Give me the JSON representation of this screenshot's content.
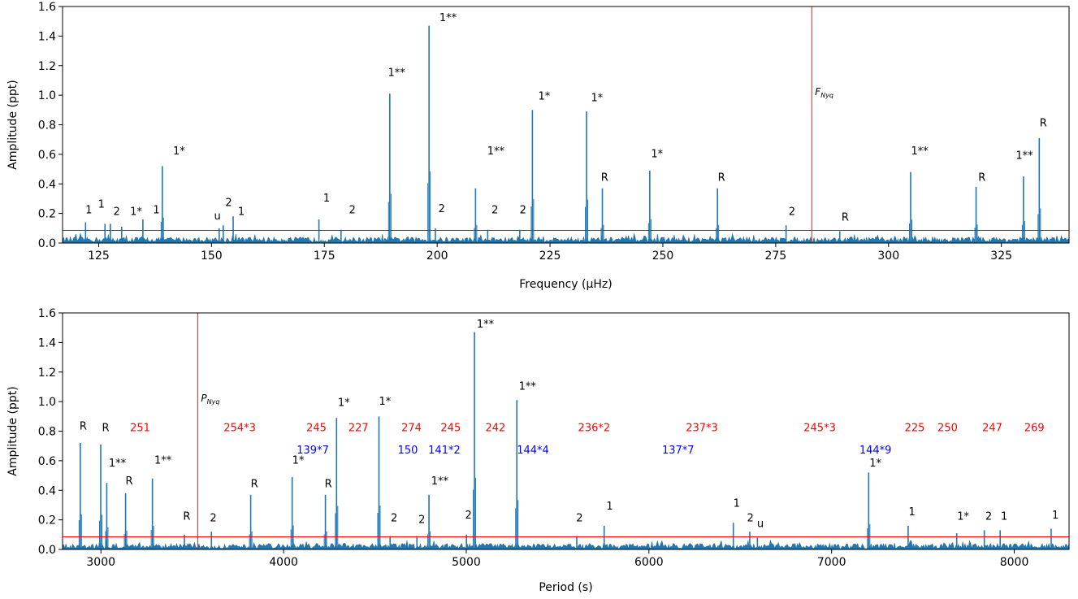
{
  "colors": {
    "signal": "#1f77b4",
    "threshold": "#ff0000",
    "black_label": "#000000",
    "red_label": "#ff0000",
    "blue_label": "#0000ff"
  },
  "chart_data": [
    {
      "type": "line",
      "xlabel": "Frequency (μHz)",
      "ylabel": "Amplitude (ppt)",
      "xlim": [
        117,
        340
      ],
      "ylim": [
        0,
        1.6
      ],
      "xticks": [
        125,
        150,
        175,
        200,
        225,
        250,
        275,
        300,
        325
      ],
      "yticks": [
        0.0,
        0.2,
        0.4,
        0.6,
        0.8,
        1.0,
        1.2,
        1.4,
        1.6
      ],
      "grid": false,
      "threshold": 0.085,
      "noise_level": 0.03,
      "nyquist": {
        "x": 283,
        "label_main": "F",
        "label_sub": "Nyq"
      },
      "peaks": [
        {
          "x": 122.1,
          "y": 0.14
        },
        {
          "x": 126.4,
          "y": 0.13
        },
        {
          "x": 127.6,
          "y": 0.13
        },
        {
          "x": 130.1,
          "y": 0.11
        },
        {
          "x": 134.8,
          "y": 0.16
        },
        {
          "x": 139.1,
          "y": 0.52
        },
        {
          "x": 151.7,
          "y": 0.1
        },
        {
          "x": 152.6,
          "y": 0.12
        },
        {
          "x": 154.8,
          "y": 0.18
        },
        {
          "x": 173.8,
          "y": 0.16
        },
        {
          "x": 178.7,
          "y": 0.09
        },
        {
          "x": 189.5,
          "y": 1.01
        },
        {
          "x": 198.2,
          "y": 1.47
        },
        {
          "x": 199.6,
          "y": 0.1
        },
        {
          "x": 208.5,
          "y": 0.37
        },
        {
          "x": 211.2,
          "y": 0.09
        },
        {
          "x": 218.3,
          "y": 0.09
        },
        {
          "x": 221.1,
          "y": 0.9
        },
        {
          "x": 233.1,
          "y": 0.89
        },
        {
          "x": 236.6,
          "y": 0.37
        },
        {
          "x": 247.1,
          "y": 0.49
        },
        {
          "x": 262.1,
          "y": 0.37
        },
        {
          "x": 277.3,
          "y": 0.12
        },
        {
          "x": 289.2,
          "y": 0.08
        },
        {
          "x": 304.9,
          "y": 0.48
        },
        {
          "x": 319.4,
          "y": 0.38
        },
        {
          "x": 329.9,
          "y": 0.45
        },
        {
          "x": 333.4,
          "y": 0.71
        }
      ],
      "annotations": [
        {
          "text": "1",
          "x": 122.8,
          "y": 0.2
        },
        {
          "x": 125.6,
          "y": 0.24,
          "text": "1"
        },
        {
          "text": "2",
          "x": 129.0,
          "y": 0.19
        },
        {
          "text": "1*",
          "x": 133.3,
          "y": 0.19
        },
        {
          "text": "1",
          "x": 137.8,
          "y": 0.2
        },
        {
          "text": "1*",
          "x": 142.8,
          "y": 0.6
        },
        {
          "text": "u",
          "x": 151.3,
          "y": 0.16
        },
        {
          "text": "2",
          "x": 153.8,
          "y": 0.25
        },
        {
          "text": "1",
          "x": 156.6,
          "y": 0.19
        },
        {
          "text": "1",
          "x": 175.5,
          "y": 0.28
        },
        {
          "text": "2",
          "x": 181.2,
          "y": 0.2
        },
        {
          "text": "1**",
          "x": 191.0,
          "y": 1.13
        },
        {
          "text": "1**",
          "x": 202.4,
          "y": 1.5
        },
        {
          "text": "2",
          "x": 201.0,
          "y": 0.21
        },
        {
          "text": "1**",
          "x": 213.0,
          "y": 0.6
        },
        {
          "text": "2",
          "x": 212.8,
          "y": 0.2
        },
        {
          "text": "2",
          "x": 219.0,
          "y": 0.2
        },
        {
          "text": "1*",
          "x": 223.7,
          "y": 0.97
        },
        {
          "text": "1*",
          "x": 235.4,
          "y": 0.96
        },
        {
          "text": "R",
          "x": 237.1,
          "y": 0.42
        },
        {
          "text": "1*",
          "x": 248.7,
          "y": 0.58
        },
        {
          "text": "R",
          "x": 263.0,
          "y": 0.42
        },
        {
          "text": "2",
          "x": 278.6,
          "y": 0.19
        },
        {
          "text": "R",
          "x": 290.4,
          "y": 0.15
        },
        {
          "text": "1**",
          "x": 306.9,
          "y": 0.6
        },
        {
          "text": "R",
          "x": 320.7,
          "y": 0.42
        },
        {
          "text": "1**",
          "x": 330.1,
          "y": 0.57
        },
        {
          "text": "R",
          "x": 334.3,
          "y": 0.79
        }
      ]
    },
    {
      "type": "line",
      "xlabel": "Period (s)",
      "ylabel": "Amplitude (ppt)",
      "xlim": [
        2790,
        8300
      ],
      "ylim": [
        0,
        1.6
      ],
      "xticks": [
        3000,
        4000,
        5000,
        6000,
        7000,
        8000
      ],
      "yticks": [
        0.0,
        0.2,
        0.4,
        0.6,
        0.8,
        1.0,
        1.2,
        1.4,
        1.6
      ],
      "grid": false,
      "threshold": 0.085,
      "noise_level": 0.03,
      "nyquist": {
        "x": 3530,
        "label_main": "P",
        "label_sub": "Nyq"
      },
      "peaks": [
        {
          "x": 2887,
          "y": 0.72
        },
        {
          "x": 2999,
          "y": 0.71
        },
        {
          "x": 3032,
          "y": 0.45
        },
        {
          "x": 3135,
          "y": 0.38
        },
        {
          "x": 3282,
          "y": 0.48
        },
        {
          "x": 3457,
          "y": 0.1
        },
        {
          "x": 3605,
          "y": 0.12
        },
        {
          "x": 3820,
          "y": 0.37
        },
        {
          "x": 4047,
          "y": 0.49
        },
        {
          "x": 4229,
          "y": 0.37
        },
        {
          "x": 4290,
          "y": 0.89
        },
        {
          "x": 4522,
          "y": 0.9
        },
        {
          "x": 4583,
          "y": 0.09
        },
        {
          "x": 4730,
          "y": 0.09
        },
        {
          "x": 4796,
          "y": 0.37
        },
        {
          "x": 5001,
          "y": 0.1
        },
        {
          "x": 5045,
          "y": 1.47
        },
        {
          "x": 5277,
          "y": 1.01
        },
        {
          "x": 5605,
          "y": 0.09
        },
        {
          "x": 5755,
          "y": 0.16
        },
        {
          "x": 6462,
          "y": 0.18
        },
        {
          "x": 6552,
          "y": 0.12
        },
        {
          "x": 6594,
          "y": 0.08
        },
        {
          "x": 7203,
          "y": 0.52
        },
        {
          "x": 7419,
          "y": 0.16
        },
        {
          "x": 7685,
          "y": 0.11
        },
        {
          "x": 7836,
          "y": 0.13
        },
        {
          "x": 7923,
          "y": 0.13
        },
        {
          "x": 8202,
          "y": 0.14
        }
      ],
      "annotations": [
        {
          "text": "R",
          "x": 2903,
          "y": 0.81,
          "color": "black"
        },
        {
          "text": "R",
          "x": 3026,
          "y": 0.8,
          "color": "black"
        },
        {
          "text": "251",
          "x": 3215,
          "y": 0.8,
          "color": "red"
        },
        {
          "text": "1**",
          "x": 3090,
          "y": 0.56,
          "color": "black"
        },
        {
          "text": "1**",
          "x": 3340,
          "y": 0.58,
          "color": "black"
        },
        {
          "text": "R",
          "x": 3155,
          "y": 0.44,
          "color": "black"
        },
        {
          "text": "R",
          "x": 3470,
          "y": 0.2,
          "color": "black"
        },
        {
          "text": "2",
          "x": 3615,
          "y": 0.19,
          "color": "black"
        },
        {
          "text": "254*3",
          "x": 3760,
          "y": 0.8,
          "color": "red"
        },
        {
          "text": "R",
          "x": 3840,
          "y": 0.42,
          "color": "black"
        },
        {
          "text": "1*",
          "x": 4080,
          "y": 0.58,
          "color": "black"
        },
        {
          "text": "245",
          "x": 4180,
          "y": 0.8,
          "color": "red"
        },
        {
          "text": "139*7",
          "x": 4160,
          "y": 0.65,
          "color": "blue"
        },
        {
          "text": "R",
          "x": 4245,
          "y": 0.42,
          "color": "black"
        },
        {
          "text": "1*",
          "x": 4330,
          "y": 0.97,
          "color": "black"
        },
        {
          "text": "227",
          "x": 4410,
          "y": 0.8,
          "color": "red"
        },
        {
          "text": "1*",
          "x": 4555,
          "y": 0.98,
          "color": "black"
        },
        {
          "text": "274",
          "x": 4700,
          "y": 0.8,
          "color": "red"
        },
        {
          "text": "150",
          "x": 4680,
          "y": 0.65,
          "color": "blue"
        },
        {
          "text": "2",
          "x": 4605,
          "y": 0.19,
          "color": "black"
        },
        {
          "text": "2",
          "x": 4757,
          "y": 0.18,
          "color": "black"
        },
        {
          "text": "1**",
          "x": 4855,
          "y": 0.44,
          "color": "black"
        },
        {
          "text": "245",
          "x": 4915,
          "y": 0.8,
          "color": "red"
        },
        {
          "text": "141*2",
          "x": 4880,
          "y": 0.65,
          "color": "blue"
        },
        {
          "text": "2",
          "x": 5012,
          "y": 0.21,
          "color": "black"
        },
        {
          "text": "1**",
          "x": 5105,
          "y": 1.5,
          "color": "black"
        },
        {
          "text": "242",
          "x": 5160,
          "y": 0.8,
          "color": "red"
        },
        {
          "text": "1**",
          "x": 5335,
          "y": 1.08,
          "color": "black"
        },
        {
          "text": "144*4",
          "x": 5365,
          "y": 0.65,
          "color": "blue"
        },
        {
          "text": "236*2",
          "x": 5700,
          "y": 0.8,
          "color": "red"
        },
        {
          "text": "2",
          "x": 5620,
          "y": 0.19,
          "color": "black"
        },
        {
          "text": "1",
          "x": 5785,
          "y": 0.27,
          "color": "black"
        },
        {
          "text": "237*3",
          "x": 6290,
          "y": 0.8,
          "color": "red"
        },
        {
          "text": "137*7",
          "x": 6160,
          "y": 0.65,
          "color": "blue"
        },
        {
          "text": "1",
          "x": 6480,
          "y": 0.29,
          "color": "black"
        },
        {
          "text": "2",
          "x": 6555,
          "y": 0.19,
          "color": "black"
        },
        {
          "text": "u",
          "x": 6610,
          "y": 0.15,
          "color": "black"
        },
        {
          "text": "245*3",
          "x": 6935,
          "y": 0.8,
          "color": "red"
        },
        {
          "text": "144*9",
          "x": 7240,
          "y": 0.65,
          "color": "blue"
        },
        {
          "text": "1*",
          "x": 7240,
          "y": 0.56,
          "color": "black"
        },
        {
          "text": "225",
          "x": 7455,
          "y": 0.8,
          "color": "red"
        },
        {
          "text": "1",
          "x": 7440,
          "y": 0.23,
          "color": "black"
        },
        {
          "text": "250",
          "x": 7635,
          "y": 0.8,
          "color": "red"
        },
        {
          "text": "1*",
          "x": 7720,
          "y": 0.2,
          "color": "black"
        },
        {
          "text": "2",
          "x": 7860,
          "y": 0.2,
          "color": "black"
        },
        {
          "text": "247",
          "x": 7880,
          "y": 0.8,
          "color": "red"
        },
        {
          "text": "1",
          "x": 7945,
          "y": 0.2,
          "color": "black"
        },
        {
          "text": "269",
          "x": 8110,
          "y": 0.8,
          "color": "red"
        },
        {
          "text": "1",
          "x": 8225,
          "y": 0.21,
          "color": "black"
        }
      ]
    }
  ]
}
